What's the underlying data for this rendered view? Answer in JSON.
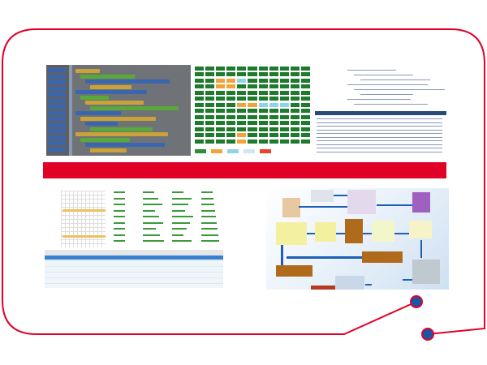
{
  "colors": {
    "frame": "#e10026",
    "band": "#e10026",
    "dot": "#1a57a8",
    "grid_cell": "#1f7a2e",
    "flow_arrow": "#1d5fb4"
  },
  "legend_colors": [
    "#2e8b3a",
    "#f2a43a",
    "#8fd3e6",
    "#cde8f2",
    "#e8442a"
  ]
}
